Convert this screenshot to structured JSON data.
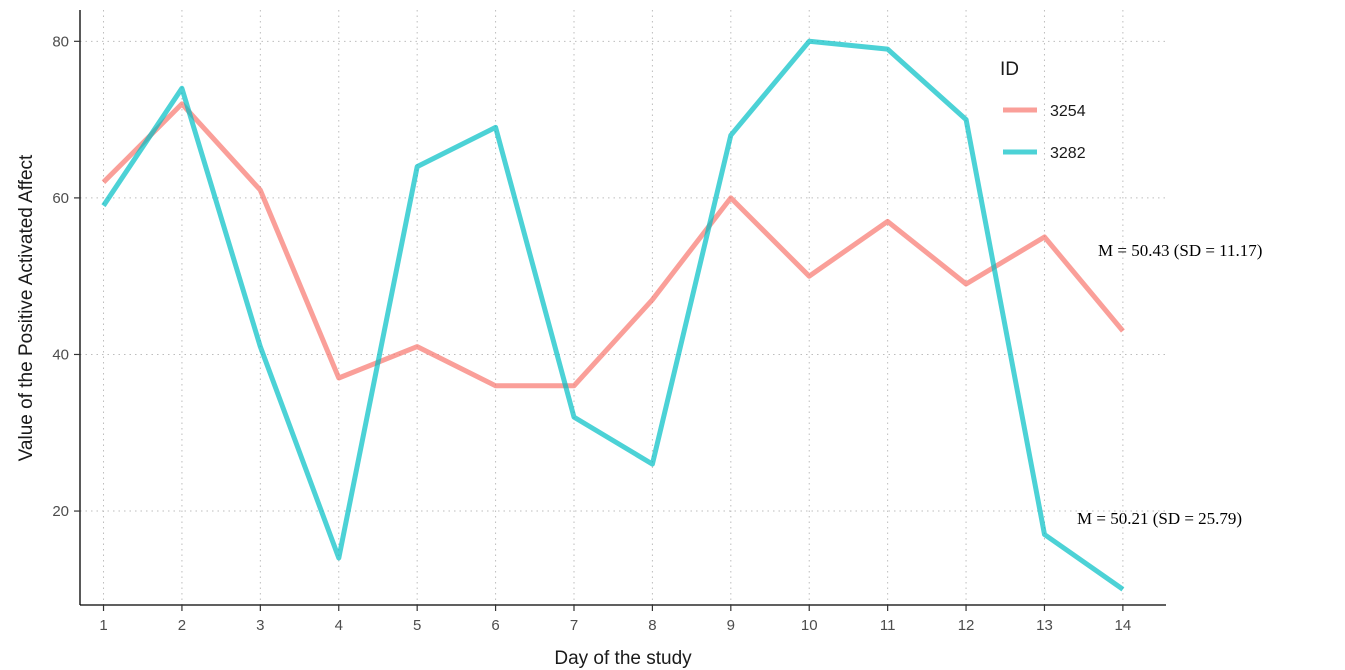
{
  "chart_data": {
    "type": "line",
    "title": "",
    "xlabel": "Day of the study",
    "ylabel": "Value of the Positive Activated Affect",
    "x": [
      1,
      2,
      3,
      4,
      5,
      6,
      7,
      8,
      9,
      10,
      11,
      12,
      13,
      14
    ],
    "xlim": [
      0.7,
      14.55
    ],
    "ylim": [
      8,
      84
    ],
    "yticks": [
      20,
      40,
      60,
      80
    ],
    "grid": true,
    "legend": {
      "title": "ID",
      "position": "top-right"
    },
    "series": [
      {
        "name": "3254",
        "color": "#F8766D",
        "values": [
          62,
          72,
          61,
          37,
          41,
          36,
          36,
          47,
          60,
          50,
          57,
          49,
          55,
          43
        ],
        "annotation": "M = 50.43 (SD = 11.17)"
      },
      {
        "name": "3282",
        "color": "#00BFC4",
        "values": [
          59,
          74,
          41,
          14,
          64,
          69,
          32,
          26,
          68,
          80,
          79,
          70,
          17,
          10
        ],
        "annotation": "M = 50.21 (SD = 25.79)"
      }
    ]
  }
}
